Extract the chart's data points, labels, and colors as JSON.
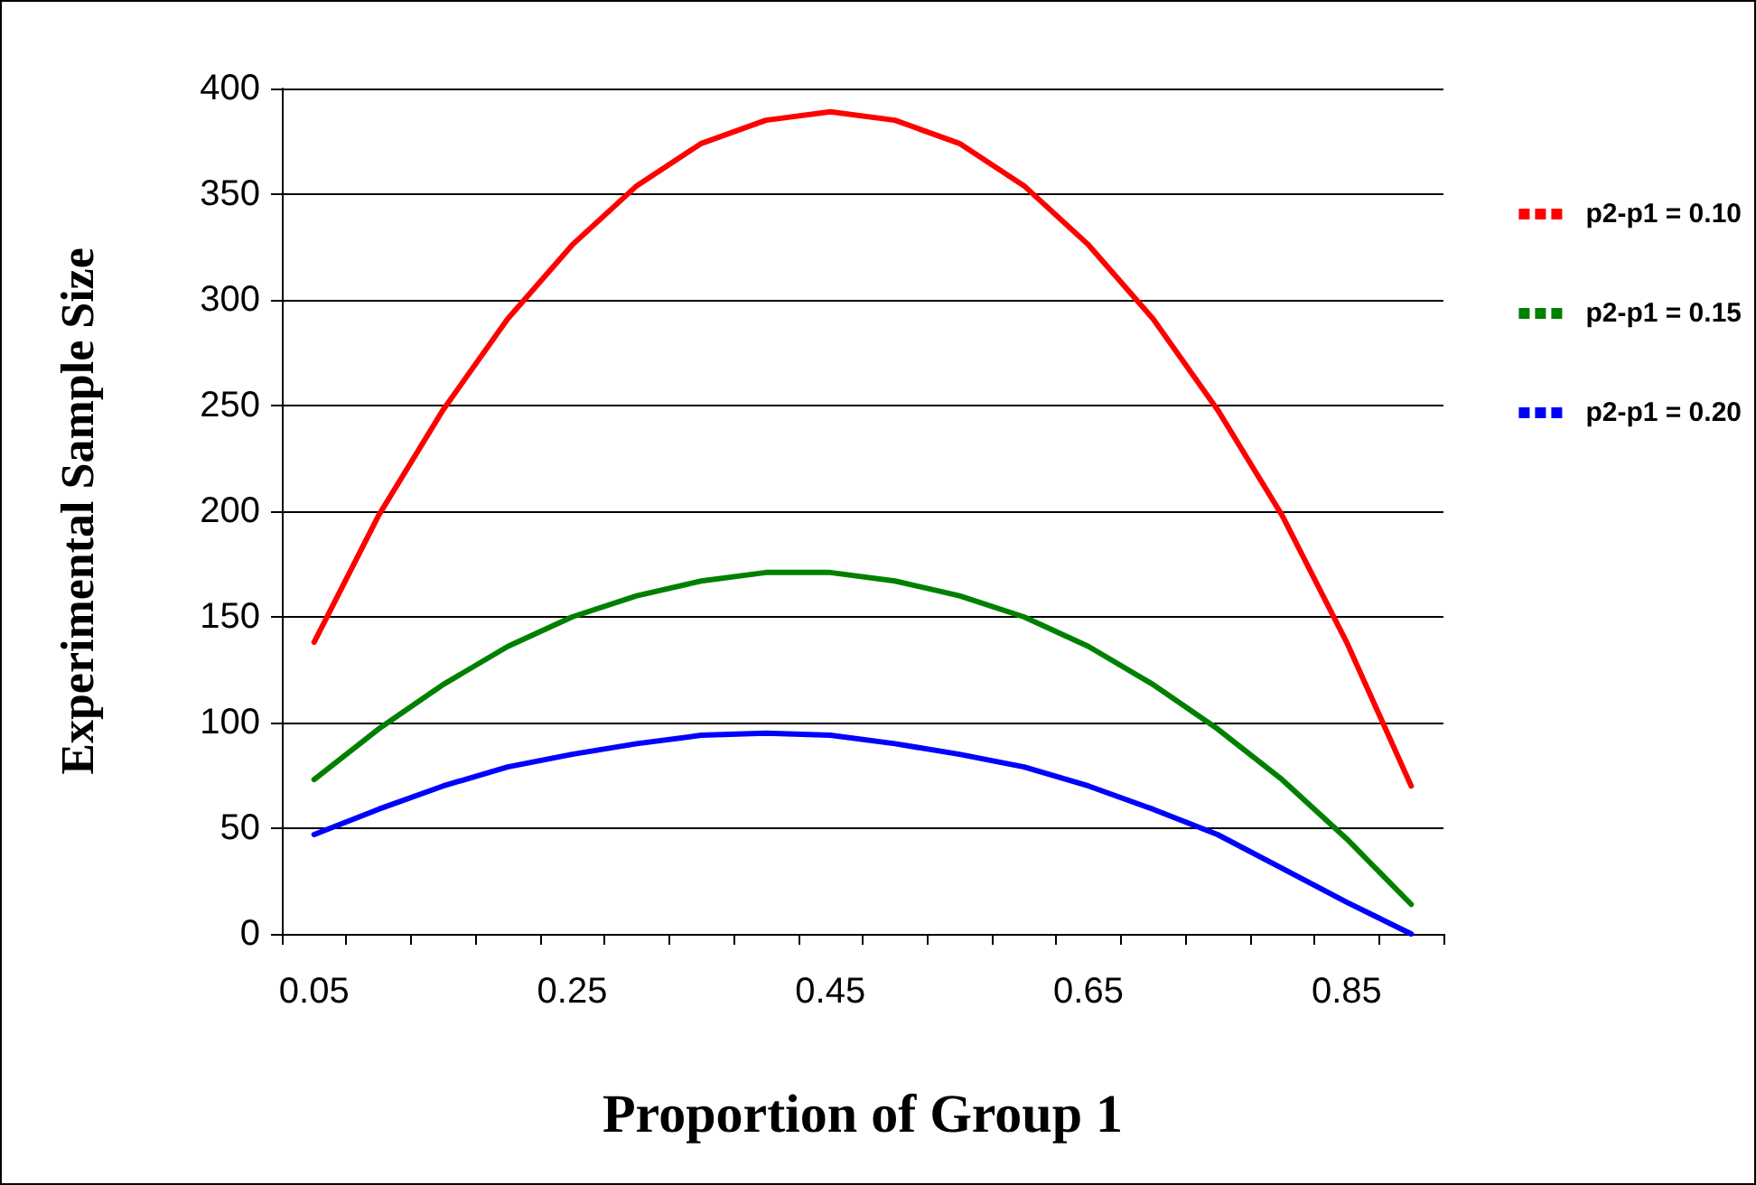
{
  "chart_data": {
    "type": "line",
    "xlabel": "Proportion of Group 1",
    "ylabel": "Experimental Sample Size",
    "categories": [
      "0.05",
      null,
      null,
      null,
      "0.25",
      null,
      null,
      null,
      "0.45",
      null,
      null,
      null,
      "0.65",
      null,
      null,
      null,
      "0.85",
      null
    ],
    "series": [
      {
        "name": "p2-p1 = 0.10",
        "color": "#ff0000",
        "values": [
          138,
          198,
          248,
          291,
          326,
          354,
          374,
          385,
          389,
          385,
          374,
          354,
          326,
          291,
          248,
          198,
          138,
          70
        ]
      },
      {
        "name": "p2-p1 = 0.15",
        "color": "#008000",
        "values": [
          73,
          97,
          118,
          136,
          150,
          160,
          167,
          171,
          171,
          167,
          160,
          150,
          136,
          118,
          97,
          73,
          45,
          14
        ]
      },
      {
        "name": "p2-p1 = 0.20",
        "color": "#0000ff",
        "values": [
          47,
          59,
          70,
          79,
          85,
          90,
          94,
          95,
          94,
          90,
          85,
          79,
          70,
          59,
          47,
          31,
          15,
          0
        ]
      }
    ],
    "ylim": [
      0,
      400
    ],
    "yticks": [
      0,
      50,
      100,
      150,
      200,
      250,
      300,
      350,
      400
    ],
    "grid": "y",
    "legend": "right",
    "marker": "none",
    "line_style": "solid"
  }
}
